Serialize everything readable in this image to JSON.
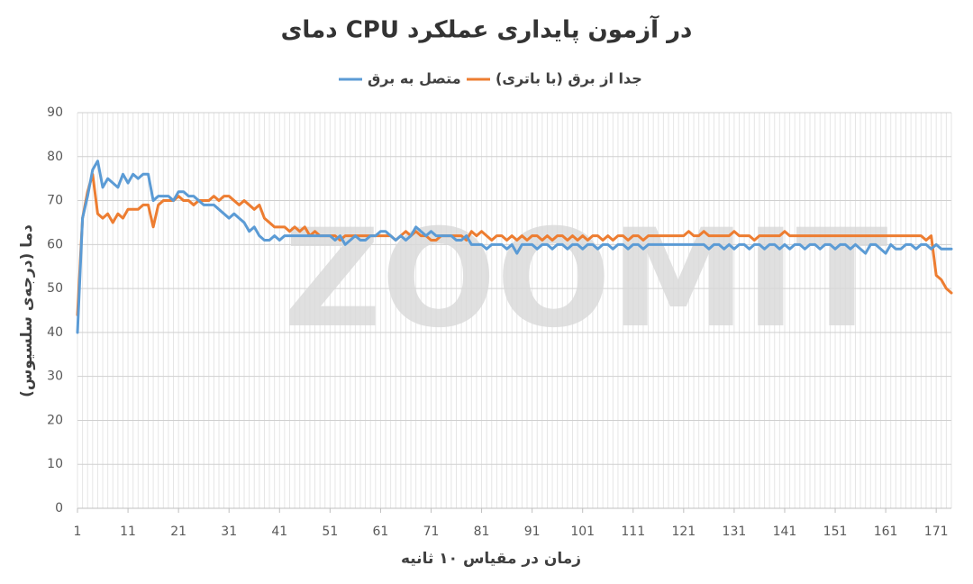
{
  "chart_data": {
    "type": "line",
    "title": "دمای CPU در آزمون پایداری عملکرد",
    "x_label": "زمان در مقیاس ۱۰ ثانیه",
    "y_label": "دما (درجه‌ی سلسیوس)",
    "watermark": "ZOOMIT",
    "x": [
      1,
      2,
      3,
      4,
      5,
      6,
      7,
      8,
      9,
      10,
      11,
      12,
      13,
      14,
      15,
      16,
      17,
      18,
      19,
      20,
      21,
      22,
      23,
      24,
      25,
      26,
      27,
      28,
      29,
      30,
      31,
      32,
      33,
      34,
      35,
      36,
      37,
      38,
      39,
      40,
      41,
      42,
      43,
      44,
      45,
      46,
      47,
      48,
      49,
      50,
      51,
      52,
      53,
      54,
      55,
      56,
      57,
      58,
      59,
      60,
      61,
      62,
      63,
      64,
      65,
      66,
      67,
      68,
      69,
      70,
      71,
      72,
      73,
      74,
      75,
      76,
      77,
      78,
      79,
      80,
      81,
      82,
      83,
      84,
      85,
      86,
      87,
      88,
      89,
      90,
      91,
      92,
      93,
      94,
      95,
      96,
      97,
      98,
      99,
      100,
      101,
      102,
      103,
      104,
      105,
      106,
      107,
      108,
      109,
      110,
      111,
      112,
      113,
      114,
      115,
      116,
      117,
      118,
      119,
      120,
      121,
      122,
      123,
      124,
      125,
      126,
      127,
      128,
      129,
      130,
      131,
      132,
      133,
      134,
      135,
      136,
      137,
      138,
      139,
      140,
      141,
      142,
      143,
      144,
      145,
      146,
      147,
      148,
      149,
      150,
      151,
      152,
      153,
      154,
      155,
      156,
      157,
      158,
      159,
      160,
      161,
      162,
      163,
      164,
      165,
      166,
      167,
      168,
      169,
      170,
      171,
      172,
      173,
      174
    ],
    "xlim": [
      1,
      174
    ],
    "xticks": [
      1,
      11,
      21,
      31,
      41,
      51,
      61,
      71,
      81,
      91,
      101,
      111,
      121,
      131,
      141,
      151,
      161,
      171
    ],
    "ylim": [
      0,
      90
    ],
    "yticks": [
      0,
      10,
      20,
      30,
      40,
      50,
      60,
      70,
      80,
      90
    ],
    "grid": true,
    "series": [
      {
        "name": "جدا از برق (با باتری)",
        "color": "#ed7d31",
        "values": [
          44,
          66,
          72,
          76,
          67,
          66,
          67,
          65,
          67,
          66,
          68,
          68,
          68,
          69,
          69,
          64,
          69,
          70,
          70,
          70,
          71,
          70,
          70,
          69,
          70,
          70,
          70,
          71,
          70,
          71,
          71,
          70,
          69,
          70,
          69,
          68,
          69,
          66,
          65,
          64,
          64,
          64,
          63,
          64,
          63,
          64,
          62,
          63,
          62,
          62,
          62,
          62,
          61,
          62,
          62,
          62,
          62,
          62,
          62,
          62,
          62,
          62,
          62,
          61,
          62,
          63,
          62,
          63,
          62,
          62,
          61,
          61,
          62,
          62,
          62,
          62,
          62,
          61,
          63,
          62,
          63,
          62,
          61,
          62,
          62,
          61,
          62,
          61,
          62,
          61,
          62,
          62,
          61,
          62,
          61,
          62,
          62,
          61,
          62,
          61,
          62,
          61,
          62,
          62,
          61,
          62,
          61,
          62,
          62,
          61,
          62,
          62,
          61,
          62,
          62,
          62,
          62,
          62,
          62,
          62,
          62,
          63,
          62,
          62,
          63,
          62,
          62,
          62,
          62,
          62,
          63,
          62,
          62,
          62,
          61,
          62,
          62,
          62,
          62,
          62,
          63,
          62,
          62,
          62,
          62,
          62,
          62,
          62,
          62,
          62,
          62,
          62,
          62,
          62,
          62,
          62,
          62,
          62,
          62,
          62,
          62,
          62,
          62,
          62,
          62,
          62,
          62,
          62,
          61,
          62,
          53,
          52,
          50,
          49
        ]
      },
      {
        "name": "متصل به برق",
        "color": "#5b9bd5",
        "values": [
          40,
          66,
          71,
          77,
          79,
          73,
          75,
          74,
          73,
          76,
          74,
          76,
          75,
          76,
          76,
          70,
          71,
          71,
          71,
          70,
          72,
          72,
          71,
          71,
          70,
          69,
          69,
          69,
          68,
          67,
          66,
          67,
          66,
          65,
          63,
          64,
          62,
          61,
          61,
          62,
          61,
          62,
          62,
          62,
          62,
          62,
          62,
          62,
          62,
          62,
          62,
          61,
          62,
          60,
          61,
          62,
          61,
          61,
          62,
          62,
          63,
          63,
          62,
          61,
          62,
          61,
          62,
          64,
          63,
          62,
          63,
          62,
          62,
          62,
          62,
          61,
          61,
          62,
          60,
          60,
          60,
          59,
          60,
          60,
          60,
          59,
          60,
          58,
          60,
          60,
          60,
          59,
          60,
          60,
          59,
          60,
          60,
          59,
          60,
          60,
          59,
          60,
          60,
          59,
          60,
          60,
          59,
          60,
          60,
          59,
          60,
          60,
          59,
          60,
          60,
          60,
          60,
          60,
          60,
          60,
          60,
          60,
          60,
          60,
          60,
          59,
          60,
          60,
          59,
          60,
          59,
          60,
          60,
          59,
          60,
          60,
          59,
          60,
          60,
          59,
          60,
          59,
          60,
          60,
          59,
          60,
          60,
          59,
          60,
          60,
          59,
          60,
          60,
          59,
          60,
          59,
          58,
          60,
          60,
          59,
          58,
          60,
          59,
          59,
          60,
          60,
          59,
          60,
          60,
          59,
          60,
          59,
          59,
          59
        ]
      }
    ]
  }
}
